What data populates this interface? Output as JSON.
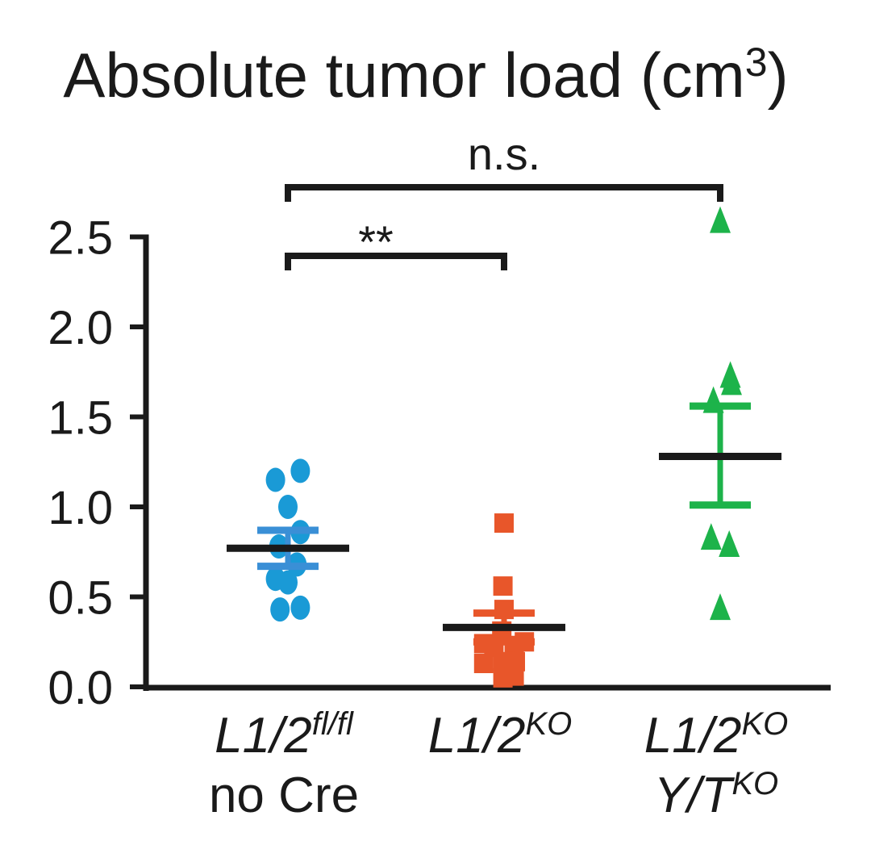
{
  "chart_data": {
    "type": "scatter",
    "title": "Absolute tumor load (cm",
    "title_superscript": "3",
    "title_close": ")",
    "ylabel": "",
    "xlabel": "",
    "ylim": [
      0,
      2.5
    ],
    "yticks": [
      {
        "value": 0.0,
        "label": "0.0"
      },
      {
        "value": 0.5,
        "label": "0.5"
      },
      {
        "value": 1.0,
        "label": "1.0"
      },
      {
        "value": 1.5,
        "label": "1.5"
      },
      {
        "value": 2.0,
        "label": "2.0"
      },
      {
        "value": 2.5,
        "label": "2.5"
      }
    ],
    "groups": [
      {
        "name": "L1/2fl/fl no Cre",
        "label_main": "L1/2",
        "label_sup": "fl/fl",
        "label_line2": "no Cre",
        "label_line2_sup": "",
        "marker": "circle",
        "color": "#1a9ad6",
        "errorbar_color": "#3a8fd6",
        "mean": 0.77,
        "sem_low": 0.67,
        "sem_high": 0.87,
        "points": [
          {
            "offset": -0.55,
            "value": 1.15
          },
          {
            "offset": 0.55,
            "value": 1.2
          },
          {
            "offset": 0.0,
            "value": 1.0
          },
          {
            "offset": 0.55,
            "value": 0.86
          },
          {
            "offset": -0.4,
            "value": 0.78
          },
          {
            "offset": 0.4,
            "value": 0.68
          },
          {
            "offset": -0.55,
            "value": 0.6
          },
          {
            "offset": 0.0,
            "value": 0.58
          },
          {
            "offset": -0.35,
            "value": 0.43
          },
          {
            "offset": 0.55,
            "value": 0.44
          }
        ]
      },
      {
        "name": "L1/2KO",
        "label_main": "L1/2",
        "label_sup": "KO",
        "label_line2": "",
        "label_line2_sup": "",
        "marker": "square",
        "color": "#e8562a",
        "errorbar_color": "#e8562a",
        "mean": 0.33,
        "sem_low": 0.25,
        "sem_high": 0.41,
        "points": [
          {
            "offset": 0.0,
            "value": 0.91
          },
          {
            "offset": -0.05,
            "value": 0.56
          },
          {
            "offset": 0.0,
            "value": 0.43
          },
          {
            "offset": -0.1,
            "value": 0.31
          },
          {
            "offset": -0.9,
            "value": 0.24
          },
          {
            "offset": -0.45,
            "value": 0.22
          },
          {
            "offset": 0.45,
            "value": 0.23
          },
          {
            "offset": 0.9,
            "value": 0.25
          },
          {
            "offset": -0.9,
            "value": 0.13
          },
          {
            "offset": -0.05,
            "value": 0.14
          },
          {
            "offset": 0.5,
            "value": 0.14
          },
          {
            "offset": -0.05,
            "value": 0.05
          },
          {
            "offset": 0.45,
            "value": 0.06
          }
        ]
      },
      {
        "name": "L1/2KO Y/TKO",
        "label_main": "L1/2",
        "label_sup": "KO",
        "label_line2": "Y/T",
        "label_line2_sup": "KO",
        "marker": "triangle",
        "color": "#1db34a",
        "errorbar_color": "#1db34a",
        "mean": 1.28,
        "sem_low": 1.01,
        "sem_high": 1.56,
        "points": [
          {
            "offset": 0.0,
            "value": 2.58
          },
          {
            "offset": 0.45,
            "value": 1.72
          },
          {
            "offset": 0.5,
            "value": 1.68
          },
          {
            "offset": -0.3,
            "value": 1.58
          },
          {
            "offset": -0.4,
            "value": 0.82
          },
          {
            "offset": 0.4,
            "value": 0.78
          },
          {
            "offset": 0.0,
            "value": 0.43
          }
        ]
      }
    ],
    "comparisons": [
      {
        "from": 0,
        "to": 1,
        "label": "**"
      },
      {
        "from": 0,
        "to": 2,
        "label": "n.s."
      }
    ]
  }
}
